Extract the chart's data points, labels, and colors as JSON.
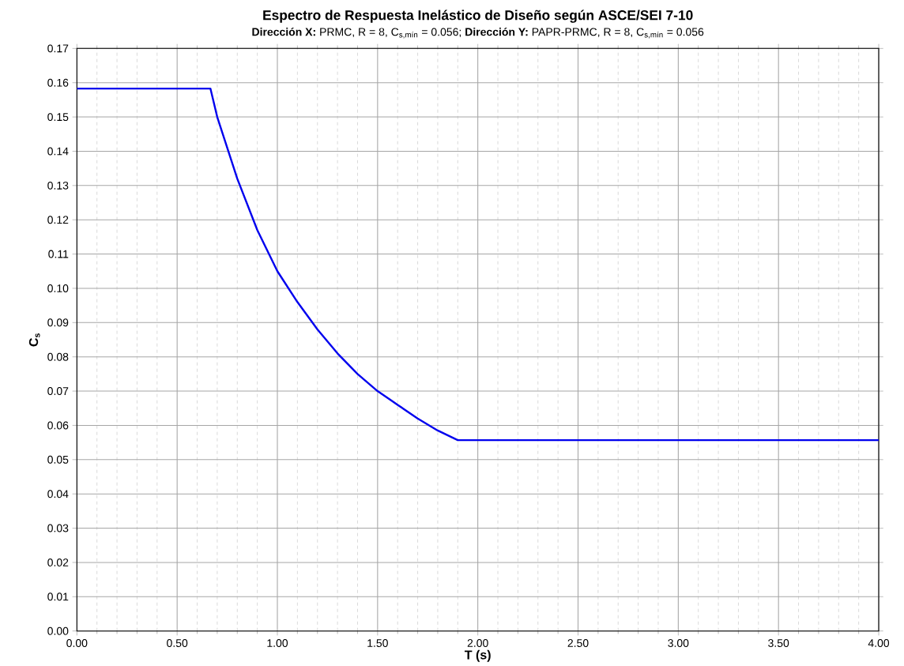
{
  "chart_data": {
    "type": "line",
    "title": "Espectro de Respuesta Inelástico de Diseño según ASCE/SEI 7-10",
    "subtitle": "**Dirección X:** PRMC, R = 8, C$_{s,mín}$ = 0.056; **Dirección Y:** PAPR-PRMC, R = 8, C$_{s,mín}$ = 0.056",
    "xlabel": "T (s)",
    "ylabel": "C$_{s}$",
    "x": [
      0,
      0.666,
      0.7,
      0.8,
      0.9,
      1.0,
      1.1,
      1.2,
      1.3,
      1.4,
      1.5,
      1.6,
      1.7,
      1.8,
      1.9,
      4.0
    ],
    "series": [
      {
        "color": "#0000ee",
        "values": [
          0.1583,
          0.1583,
          0.15,
          0.132,
          0.117,
          0.105,
          0.096,
          0.088,
          0.081,
          0.075,
          0.07,
          0.066,
          0.062,
          0.0585,
          0.0557,
          0.0557
        ]
      }
    ],
    "xlim": [
      0,
      4
    ],
    "ylim": [
      0,
      0.17
    ],
    "xticks": [
      {
        "value": 0,
        "label": "0.00"
      },
      {
        "value": 0.5,
        "label": "0.50"
      },
      {
        "value": 1,
        "label": "1.00"
      },
      {
        "value": 1.5,
        "label": "1.50"
      },
      {
        "value": 2,
        "label": "2.00"
      },
      {
        "value": 2.5,
        "label": "2.50"
      },
      {
        "value": 3,
        "label": "3.00"
      },
      {
        "value": 3.5,
        "label": "3.50"
      },
      {
        "value": 4,
        "label": "4.00"
      }
    ],
    "yticks": [
      {
        "value": 0,
        "label": "0.00"
      },
      {
        "value": 0.01,
        "label": "0.01"
      },
      {
        "value": 0.02,
        "label": "0.02"
      },
      {
        "value": 0.03,
        "label": "0.03"
      },
      {
        "value": 0.04,
        "label": "0.04"
      },
      {
        "value": 0.05,
        "label": "0.05"
      },
      {
        "value": 0.06,
        "label": "0.06"
      },
      {
        "value": 0.07,
        "label": "0.07"
      },
      {
        "value": 0.08,
        "label": "0.08"
      },
      {
        "value": 0.09,
        "label": "0.09"
      },
      {
        "value": 0.1,
        "label": "0.10"
      },
      {
        "value": 0.11,
        "label": "0.11"
      },
      {
        "value": 0.12,
        "label": "0.12"
      },
      {
        "value": 0.13,
        "label": "0.13"
      },
      {
        "value": 0.14,
        "label": "0.14"
      },
      {
        "value": 0.15,
        "label": "0.15"
      },
      {
        "value": 0.16,
        "label": "0.16"
      },
      {
        "value": 0.17,
        "label": "0.17"
      }
    ],
    "grid": true,
    "marker": "none",
    "line_style": "solid"
  }
}
